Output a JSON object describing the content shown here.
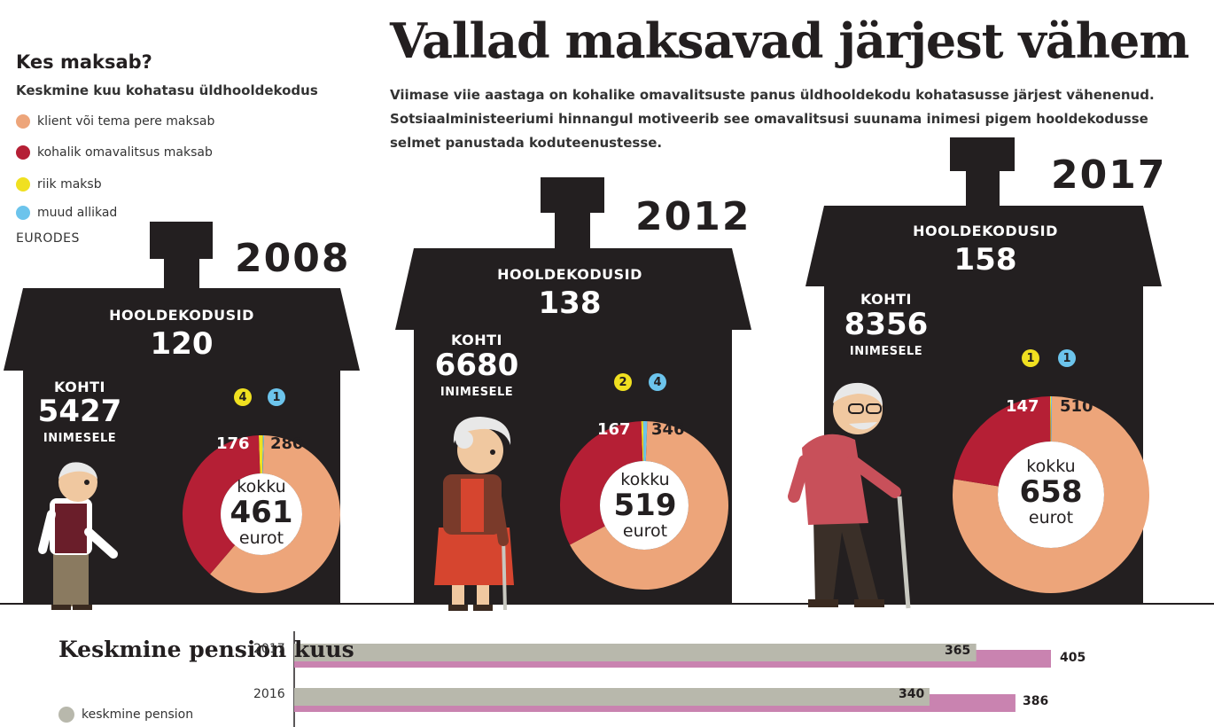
{
  "title": "Vallad maksavad järjest vähem",
  "intro": [
    "Viimase viie aastaga on kohalike omavalitsuste panus üldhooldekodu kohatasusse järjest vähenenud.",
    "Sotsiaalministeeriumi hinnangul motiveerib see omavalitsusi suunama inimesi pigem hooldekodusse",
    "selmet panustada koduteenustesse."
  ],
  "legend": {
    "title": "Kes maksab?",
    "subtitle": "Keskmine kuu kohatasu üldhooldekodus",
    "unit": "EURODES",
    "items": [
      {
        "label": "klient või tema pere maksab",
        "color": "#eda57a"
      },
      {
        "label": "kohalik omavalitsus maksab",
        "color": "#b51f35"
      },
      {
        "label": "riik maksb",
        "color": "#f0e020"
      },
      {
        "label": "muud allikad",
        "color": "#6cc4ec"
      }
    ]
  },
  "labels": {
    "homes": "HOOLDEKODUSID",
    "places": "KOHTI",
    "per": "INIMESELE",
    "total": "kokku",
    "currency": "eurot"
  },
  "chart_data": [
    {
      "type": "pie",
      "title": "2008",
      "categories": [
        "klient või tema pere maksab",
        "kohalik omavalitsus maksab",
        "riik maksb",
        "muud allikad"
      ],
      "values": [
        280,
        176,
        4,
        1
      ],
      "total": 461,
      "homes": 120,
      "places": 5427
    },
    {
      "type": "pie",
      "title": "2012",
      "categories": [
        "klient või tema pere maksab",
        "kohalik omavalitsus maksab",
        "riik maksb",
        "muud allikad"
      ],
      "values": [
        346,
        167,
        2,
        4
      ],
      "total": 519,
      "homes": 138,
      "places": 6680
    },
    {
      "type": "pie",
      "title": "2017",
      "categories": [
        "klient või tema pere maksab",
        "kohalik omavalitsus maksab",
        "riik maksb",
        "muud allikad"
      ],
      "values": [
        510,
        147,
        1,
        1
      ],
      "total": 658,
      "homes": 158,
      "places": 8356
    },
    {
      "type": "bar",
      "title": "Keskmine pension kuus",
      "categories": [
        "2017",
        "2016"
      ],
      "series": [
        {
          "name": "keskmine pension",
          "values": [
            365,
            340
          ],
          "color": "#b8b8ac"
        },
        {
          "name": "",
          "values": [
            405,
            386
          ],
          "color": "#c983b0"
        }
      ]
    }
  ],
  "colors": {
    "house": "#231f20",
    "client": "#eda57a",
    "municipality": "#b51f35",
    "state": "#f0e020",
    "other": "#6cc4ec",
    "pension": "#b8b8ac",
    "bar2": "#c983b0"
  }
}
